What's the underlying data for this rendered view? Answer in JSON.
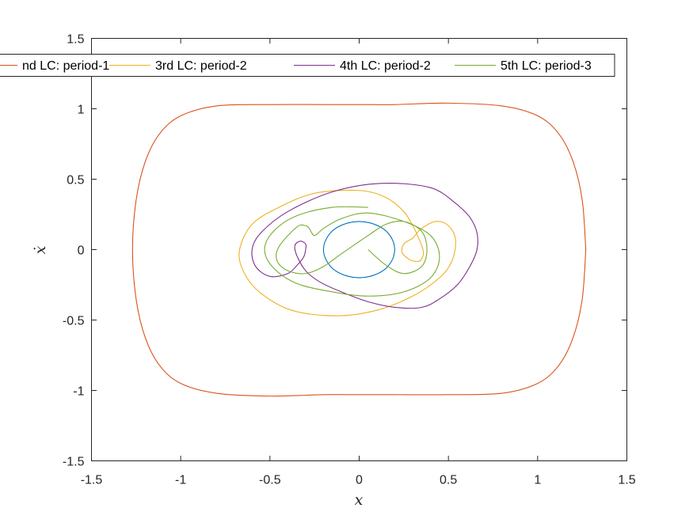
{
  "chart_data": {
    "type": "line",
    "title": "",
    "xlabel": "x",
    "ylabel": "ẋ",
    "xlim": [
      -1.5,
      1.5
    ],
    "ylim": [
      -1.5,
      1.5
    ],
    "xticks": [
      -1.5,
      -1,
      -0.5,
      0,
      0.5,
      1,
      1.5
    ],
    "yticks": [
      -1.5,
      -1,
      -0.5,
      0,
      0.5,
      1,
      1.5
    ],
    "xtick_labels": [
      "-1.5",
      "-1",
      "-0.5",
      "0",
      "0.5",
      "1",
      "1.5"
    ],
    "ytick_labels": [
      "-1.5",
      "-1",
      "-0.5",
      "0",
      "0.5",
      "1",
      "1.5"
    ],
    "grid": false,
    "legend_position": "top, horizontal, clipped on the left",
    "series": [
      {
        "color": "#0072BD",
        "x": [
          0.2,
          0.19,
          0.16,
          0.12,
          0.06,
          0.0,
          -0.06,
          -0.12,
          -0.16,
          -0.19,
          -0.2,
          -0.19,
          -0.16,
          -0.12,
          -0.06,
          0.0,
          0.06,
          0.12,
          0.16,
          0.19,
          0.2
        ],
        "y": [
          0.0,
          0.06,
          0.12,
          0.16,
          0.19,
          0.2,
          0.19,
          0.16,
          0.12,
          0.06,
          0.0,
          -0.06,
          -0.12,
          -0.16,
          -0.19,
          -0.2,
          -0.19,
          -0.16,
          -0.12,
          -0.06,
          0.0
        ]
      },
      {
        "name": "nd LC: period-1",
        "color": "#D95319",
        "x": [
          1.27,
          1.25,
          1.2,
          1.12,
          1.0,
          0.8,
          0.5,
          0.2,
          0.0,
          -0.2,
          -0.5,
          -0.8,
          -1.0,
          -1.12,
          -1.2,
          -1.25,
          -1.27,
          -1.25,
          -1.2,
          -1.12,
          -1.0,
          -0.8,
          -0.5,
          -0.2,
          0.0,
          0.2,
          0.5,
          0.8,
          1.0,
          1.12,
          1.2,
          1.25,
          1.27
        ],
        "y": [
          0.0,
          0.35,
          0.62,
          0.82,
          0.95,
          1.02,
          1.04,
          1.03,
          1.03,
          1.03,
          1.03,
          1.02,
          0.95,
          0.82,
          0.62,
          0.35,
          0.0,
          -0.35,
          -0.62,
          -0.82,
          -0.95,
          -1.02,
          -1.04,
          -1.03,
          -1.03,
          -1.03,
          -1.03,
          -1.02,
          -0.95,
          -0.82,
          -0.62,
          -0.35,
          0.0
        ]
      },
      {
        "name": "3rd LC: period-2",
        "color": "#EDB120",
        "x": [
          0.3,
          0.35,
          0.43,
          0.5,
          0.54,
          0.52,
          0.45,
          0.3,
          0.1,
          -0.13,
          -0.38,
          -0.56,
          -0.65,
          -0.67,
          -0.6,
          -0.45,
          -0.25,
          0.0,
          0.15,
          0.25,
          0.3,
          0.32,
          0.35,
          0.36,
          0.34,
          0.3,
          0.27,
          0.24,
          0.25,
          0.3
        ],
        "y": [
          0.08,
          0.15,
          0.2,
          0.17,
          0.07,
          -0.08,
          -0.2,
          -0.33,
          -0.43,
          -0.47,
          -0.43,
          -0.3,
          -0.15,
          0.0,
          0.18,
          0.3,
          0.4,
          0.42,
          0.37,
          0.27,
          0.17,
          0.12,
          0.03,
          -0.03,
          -0.08,
          -0.08,
          -0.06,
          -0.02,
          0.04,
          0.08
        ]
      },
      {
        "name": "4th LC: period-2",
        "color": "#7E2F8E",
        "x": [
          0.55,
          0.4,
          0.12,
          -0.15,
          -0.4,
          -0.55,
          -0.6,
          -0.58,
          -0.5,
          -0.4,
          -0.34,
          -0.31,
          -0.3,
          -0.3,
          -0.33,
          -0.36,
          -0.35,
          -0.3,
          -0.22,
          -0.1,
          0.05,
          0.2,
          0.35,
          0.45,
          0.55,
          0.62,
          0.66,
          0.66,
          0.62,
          0.55
        ],
        "y": [
          0.32,
          0.44,
          0.47,
          0.41,
          0.27,
          0.12,
          0.0,
          -0.12,
          -0.19,
          -0.17,
          -0.1,
          -0.05,
          0.0,
          0.04,
          0.06,
          0.03,
          -0.04,
          -0.15,
          -0.23,
          -0.3,
          -0.37,
          -0.41,
          -0.41,
          -0.35,
          -0.25,
          -0.12,
          0.0,
          0.12,
          0.23,
          0.32
        ]
      },
      {
        "name": "5th LC: period-3",
        "color": "#77AC30",
        "x": [
          0.05,
          -0.15,
          -0.35,
          -0.48,
          -0.53,
          -0.48,
          -0.35,
          -0.15,
          0.05,
          0.25,
          0.4,
          0.45,
          0.4,
          0.25,
          0.05,
          -0.1,
          -0.2,
          -0.25,
          -0.28,
          -0.3,
          -0.35,
          -0.45,
          -0.46,
          -0.4,
          -0.3,
          -0.2,
          -0.1,
          0.05,
          0.15,
          0.25,
          0.35,
          0.38,
          0.35,
          0.25,
          0.15,
          0.05
        ],
        "y": [
          0.3,
          0.3,
          0.24,
          0.13,
          0.0,
          -0.13,
          -0.24,
          -0.3,
          -0.33,
          -0.3,
          -0.2,
          -0.05,
          0.1,
          0.2,
          0.26,
          0.22,
          0.15,
          0.1,
          0.15,
          0.17,
          0.16,
          0.02,
          -0.08,
          -0.15,
          -0.17,
          -0.12,
          -0.03,
          0.1,
          0.18,
          0.2,
          0.13,
          0.0,
          -0.12,
          -0.17,
          -0.11,
          0.0
        ]
      }
    ]
  }
}
